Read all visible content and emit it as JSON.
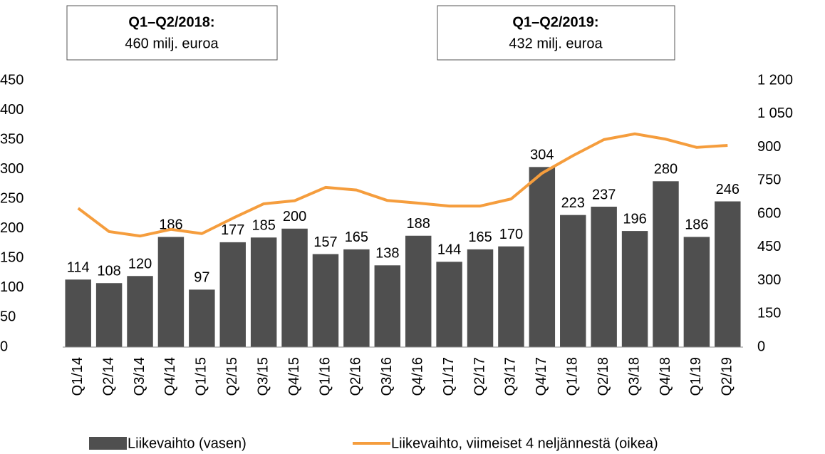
{
  "chart_data": {
    "type": "bar_line",
    "annotations": [
      {
        "title": "Q1–Q2/2018:",
        "text": "460 milj. euroa"
      },
      {
        "title": "Q1–Q2/2019:",
        "text": "432 milj. euroa"
      }
    ],
    "categories": [
      "Q1/14",
      "Q2/14",
      "Q3/14",
      "Q4/14",
      "Q1/15",
      "Q2/15",
      "Q3/15",
      "Q4/15",
      "Q1/16",
      "Q2/16",
      "Q3/16",
      "Q4/16",
      "Q1/17",
      "Q2/17",
      "Q3/17",
      "Q4/17",
      "Q1/18",
      "Q2/18",
      "Q3/18",
      "Q4/18",
      "Q1/19",
      "Q2/19"
    ],
    "series": [
      {
        "name": "Liikevaihto (vasen)",
        "type": "bar",
        "color": "#4f4f4f",
        "values": [
          114,
          108,
          120,
          186,
          97,
          177,
          185,
          200,
          157,
          165,
          138,
          188,
          144,
          165,
          170,
          304,
          223,
          237,
          196,
          280,
          186,
          246
        ]
      },
      {
        "name": "Liikevaihto, viimeiset 4 neljännestä (oikea)",
        "type": "line",
        "axis": "y2",
        "color": "#f59d3d",
        "values": [
          625,
          520,
          500,
          530,
          511,
          580,
          645,
          659,
          719,
          707,
          660,
          648,
          635,
          635,
          667,
          783,
          862,
          934,
          960,
          936,
          899,
          908
        ]
      }
    ],
    "ylim": [
      0,
      450
    ],
    "yticks": [
      0,
      50,
      100,
      150,
      200,
      250,
      300,
      350,
      400,
      450
    ],
    "y2lim": [
      0,
      1200
    ],
    "y2ticks": [
      0,
      150,
      300,
      450,
      600,
      750,
      900,
      {
        "value": 1050,
        "label": "1 050"
      },
      {
        "value": 1200,
        "label": "1 200"
      }
    ],
    "grid": false,
    "legend": "bottom"
  }
}
